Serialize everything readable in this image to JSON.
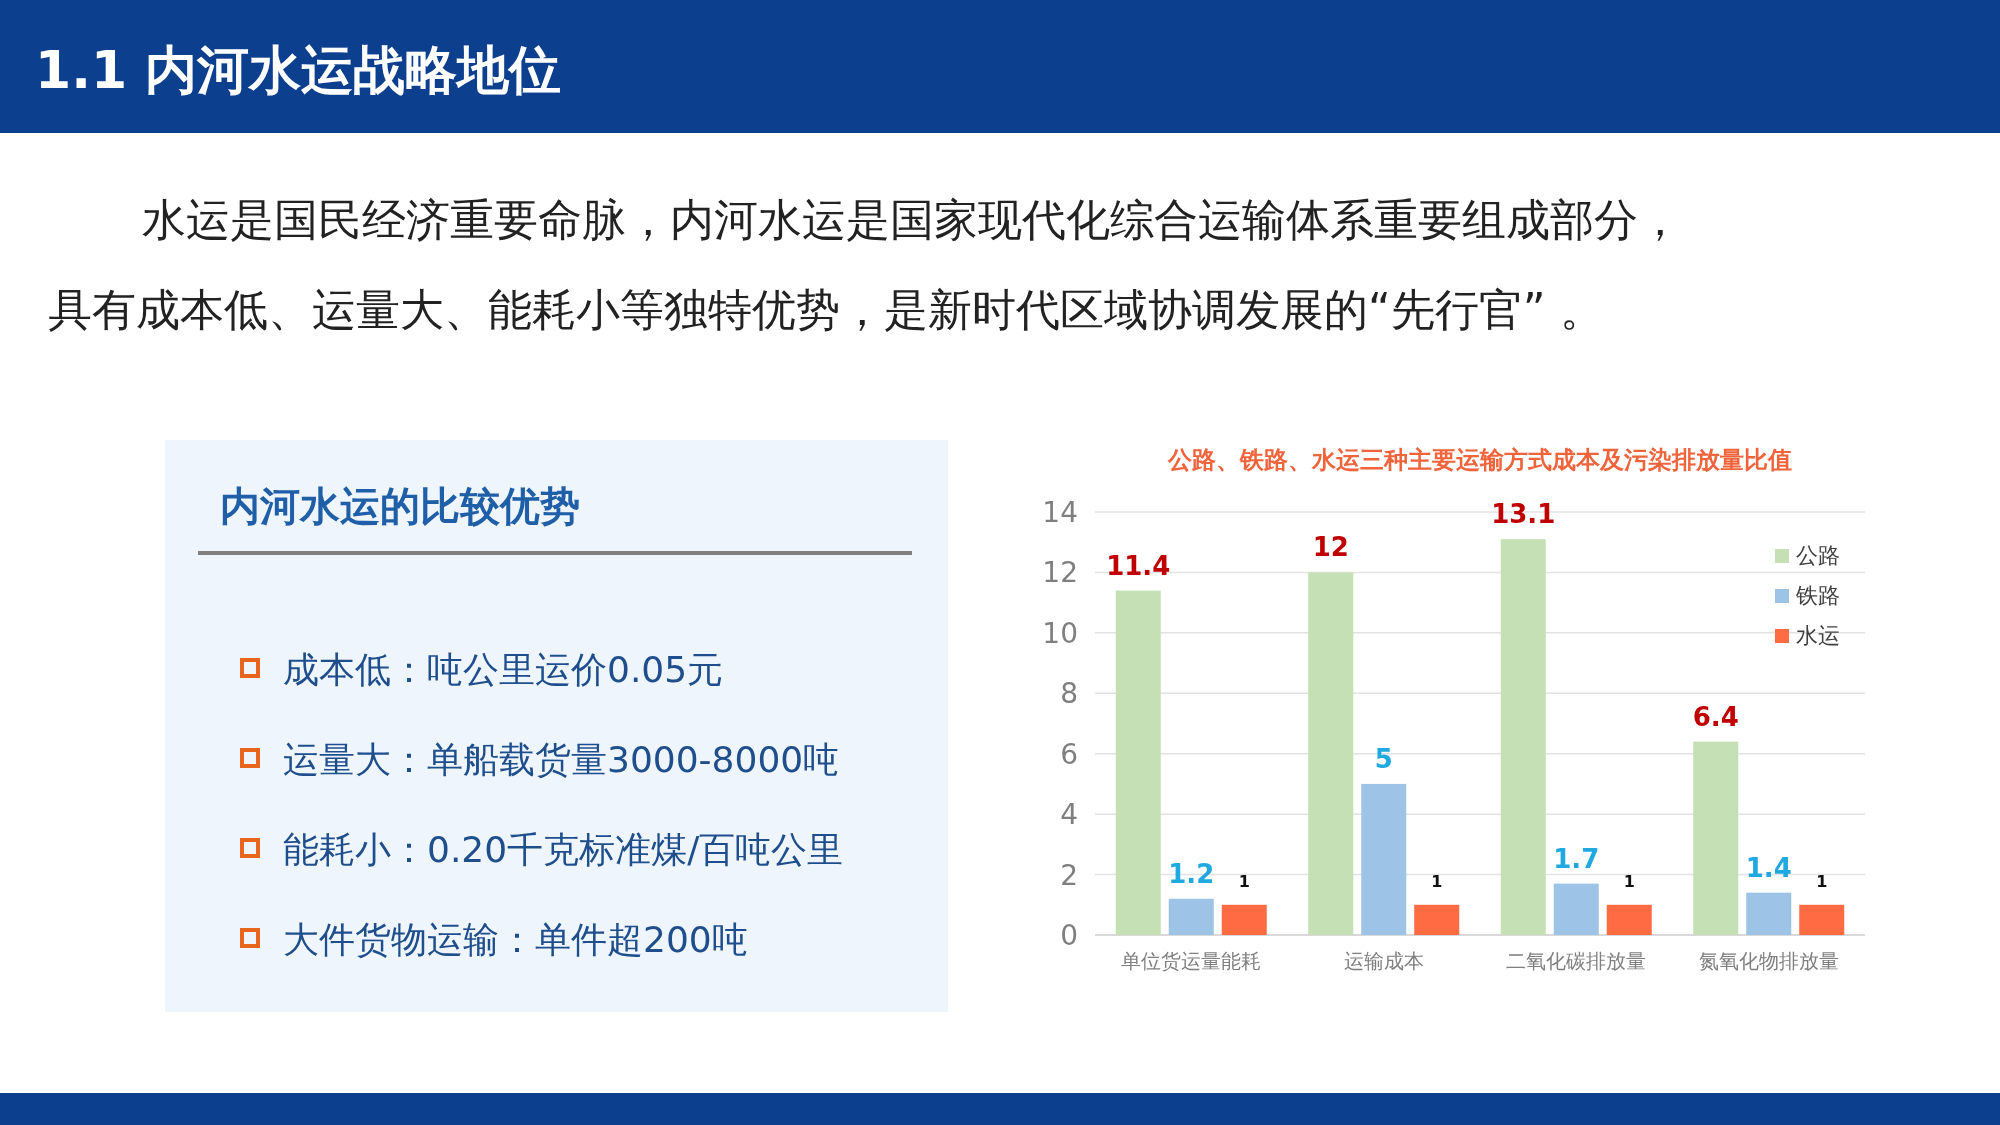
{
  "chart_data": {
    "type": "bar",
    "title": "公路、铁路、水运三种主要运输方式成本及污染排放量比值",
    "categories": [
      "单位货运量能耗",
      "运输成本",
      "二氧化碳排放量",
      "氮氧化物排放量"
    ],
    "series": [
      {
        "name": "公路",
        "color": "#c5e0b4",
        "values": [
          11.4,
          12,
          13.1,
          6.4
        ]
      },
      {
        "name": "铁路",
        "color": "#9dc3e6",
        "values": [
          1.2,
          5,
          1.7,
          1.4
        ]
      },
      {
        "name": "水运",
        "color": "#ff6b42",
        "values": [
          1,
          1,
          1,
          1
        ]
      }
    ],
    "ylim": [
      0,
      14
    ],
    "yticks": [
      0,
      2,
      4,
      6,
      8,
      10,
      12,
      14
    ],
    "grid": "y",
    "legend": "top right",
    "data_labels": true,
    "annotations": [
      "1.1  内河水运战略地位",
      "水运是国民经济重要命脉，内河水运是国家现代化综合运输体系重要组成部分，",
      "具有成本低、运量大、能耗小等独特优势，是新时代区域协调发展的“先行官” 。",
      "内河水运的比较优势",
      "成本低：吨公里运价0.05元",
      "运量大：单船载货量3000-8000吨",
      "能耗小：0.20千克标准煤/百吨公里",
      "大件货物运输：单件超200吨"
    ]
  }
}
